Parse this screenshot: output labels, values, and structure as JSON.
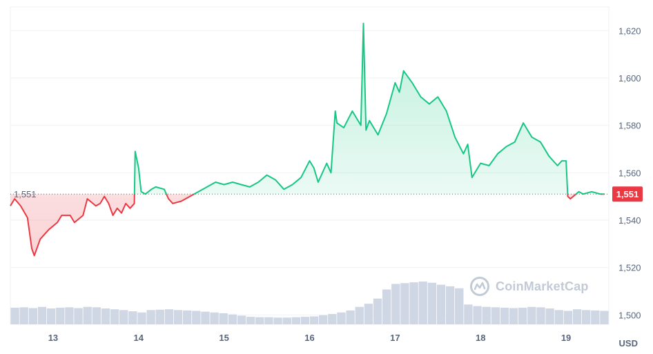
{
  "watermark": {
    "text": "CoinMarketCap"
  },
  "unit_label": "USD",
  "colors": {
    "up": "#16c784",
    "down": "#ea3943",
    "volume": "#cfd6e4",
    "baseline": "#58667e"
  },
  "chart_data": {
    "type": "line",
    "title": "",
    "xlabel": "",
    "ylabel": "",
    "y_unit": "USD",
    "ylim": [
      1496,
      1630
    ],
    "yticks": [
      1500,
      1520,
      1540,
      1560,
      1580,
      1600,
      1620
    ],
    "ytick_labels": [
      "1,500",
      "1,520",
      "1,540",
      "1,560",
      "1,580",
      "1,600",
      "1,620"
    ],
    "xlim": [
      12.5,
      19.5
    ],
    "xticks": [
      13,
      14,
      15,
      16,
      17,
      18,
      19
    ],
    "xtick_labels": [
      "13",
      "14",
      "15",
      "16",
      "17",
      "18",
      "19"
    ],
    "baseline": {
      "value": 1551,
      "label": "1,551"
    },
    "current_price": {
      "value": 1551,
      "label": "1,551"
    },
    "grid": true,
    "series": [
      {
        "values_x": [
          12.5,
          12.55,
          12.62,
          12.7,
          12.75,
          12.78,
          12.85,
          12.95,
          13.05,
          13.1,
          13.2,
          13.25,
          13.35,
          13.4,
          13.5,
          13.55,
          13.6,
          13.65,
          13.7,
          13.75,
          13.8,
          13.85,
          13.9,
          13.95,
          13.96,
          14.0,
          14.03,
          14.08,
          14.15,
          14.2,
          14.3,
          14.35,
          14.4,
          14.5,
          14.6,
          14.7,
          14.8,
          14.9,
          15.0,
          15.1,
          15.2,
          15.3,
          15.4,
          15.5,
          15.6,
          15.7,
          15.8,
          15.9,
          16.0,
          16.05,
          16.1,
          16.2,
          16.25,
          16.3,
          16.32,
          16.4,
          16.5,
          16.6,
          16.63,
          16.66,
          16.7,
          16.8,
          16.9,
          17.0,
          17.05,
          17.1,
          17.2,
          17.3,
          17.4,
          17.5,
          17.6,
          17.7,
          17.8,
          17.85,
          17.9,
          18.0,
          18.1,
          18.2,
          18.3,
          18.4,
          18.5,
          18.6,
          18.7,
          18.8,
          18.9,
          18.95,
          19.0,
          19.02,
          19.05,
          19.15,
          19.2,
          19.3,
          19.4,
          19.45
        ],
        "values_y": [
          1546,
          1549,
          1546,
          1541,
          1528,
          1525,
          1532,
          1536,
          1539,
          1542,
          1542,
          1539,
          1542,
          1549,
          1546,
          1547,
          1550,
          1547,
          1542,
          1545,
          1543,
          1547,
          1545,
          1547,
          1569,
          1562,
          1552,
          1551,
          1553,
          1554,
          1553,
          1549,
          1547,
          1548,
          1550,
          1552,
          1554,
          1556,
          1555,
          1556,
          1555,
          1554,
          1556,
          1559,
          1557,
          1553,
          1555,
          1558,
          1565,
          1562,
          1556,
          1564,
          1560,
          1586,
          1581,
          1579,
          1586,
          1580,
          1623,
          1578,
          1582,
          1576,
          1585,
          1598,
          1594,
          1603,
          1598,
          1592,
          1589,
          1592,
          1586,
          1575,
          1568,
          1572,
          1558,
          1564,
          1563,
          1568,
          1571,
          1573,
          1581,
          1575,
          1573,
          1567,
          1563,
          1565,
          1565,
          1550,
          1549,
          1552,
          1551,
          1552,
          1551,
          1551
        ]
      }
    ],
    "volume": [
      4.2,
      4.3,
      4.1,
      4.4,
      4.0,
      4.2,
      4.3,
      4.1,
      4.4,
      4.3,
      4.0,
      3.8,
      3.6,
      3.3,
      3.0,
      3.6,
      3.7,
      3.8,
      3.6,
      3.5,
      3.4,
      3.2,
      3.0,
      2.8,
      2.5,
      2.2,
      1.9,
      1.8,
      1.8,
      1.7,
      1.7,
      1.8,
      1.9,
      2.0,
      2.3,
      2.6,
      3.0,
      3.5,
      4.4,
      5.2,
      6.5,
      8.8,
      10.2,
      10.4,
      10.6,
      10.8,
      10.5,
      10.0,
      9.6,
      9.1,
      5.0,
      4.6,
      4.4,
      4.3,
      4.2,
      4.1,
      4.2,
      4.4,
      4.3,
      4.0,
      3.6,
      3.4,
      3.8,
      3.6,
      3.5,
      3.4
    ]
  }
}
